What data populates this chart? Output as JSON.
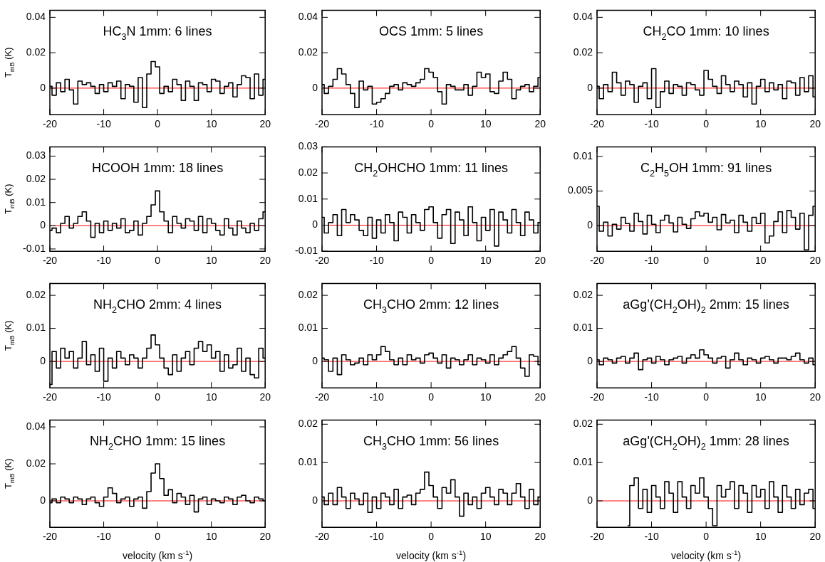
{
  "chart_data": [
    {
      "type": "step",
      "title": "HC$_{3}$N 1mm: 6 lines",
      "ylabel": "T$_{mB}$ (K)",
      "color": "#000000",
      "xlim": [
        -20,
        20
      ],
      "xticks": [
        -20,
        -10,
        0,
        10,
        20
      ],
      "ylim": [
        -0.015,
        0.044
      ],
      "yticks": [
        0,
        0.02,
        0.04
      ],
      "ref_lines": [
        {
          "axis": "y",
          "value": 0,
          "color": "#ff0000"
        }
      ],
      "x": [
        -20,
        -19.2,
        -18.4,
        -17.6,
        -16.8,
        -16,
        -15.2,
        -14.4,
        -13.6,
        -12.8,
        -12,
        -11.2,
        -10.4,
        -9.6,
        -8.8,
        -8,
        -7.2,
        -6.4,
        -5.6,
        -4.8,
        -4,
        -3.2,
        -2.4,
        -1.6,
        -0.8,
        0,
        0.8,
        1.6,
        2.4,
        3.2,
        4,
        4.8,
        5.6,
        6.4,
        7.2,
        8,
        8.8,
        9.6,
        10.4,
        11.2,
        12,
        12.8,
        13.6,
        14.4,
        15.2,
        16,
        16.8,
        17.6,
        18.4,
        19.2,
        20
      ],
      "values": [
        0.001,
        -0.004,
        0.003,
        -0.002,
        0.005,
        -0.001,
        -0.009,
        0.004,
        0.002,
        0.003,
        0.001,
        -0.003,
        0.002,
        -0.002,
        0.003,
        0.001,
        0.004,
        -0.006,
        0.002,
        0.001,
        -0.008,
        0.006,
        -0.011,
        0.008,
        0.015,
        0.012,
        -0.003,
        0.001,
        -0.002,
        0.005,
        0.002,
        -0.007,
        0.004,
        0.001,
        -0.007,
        0.003,
        0.002,
        -0.002,
        0.005,
        0.004,
        -0.003,
        0.001,
        0.003,
        -0.005,
        0.002,
        0.007,
        0.006,
        -0.006,
        0.008,
        -0.004,
        0.005
      ]
    },
    {
      "type": "step",
      "title": "OCS 1mm: 5 lines",
      "color": "#000000",
      "xlim": [
        -20,
        20
      ],
      "xticks": [
        -20,
        -10,
        0,
        10,
        20
      ],
      "ylim": [
        -0.015,
        0.044
      ],
      "yticks": [
        0,
        0.02,
        0.04
      ],
      "ref_lines": [
        {
          "axis": "y",
          "value": 0,
          "color": "#ff0000"
        }
      ],
      "x": [
        -20,
        -19.2,
        -18.4,
        -17.6,
        -16.8,
        -16,
        -15.2,
        -14.4,
        -13.6,
        -12.8,
        -12,
        -11.2,
        -10.4,
        -9.6,
        -8.8,
        -8,
        -7.2,
        -6.4,
        -5.6,
        -4.8,
        -4,
        -3.2,
        -2.4,
        -1.6,
        -0.8,
        0,
        0.8,
        1.6,
        2.4,
        3.2,
        4,
        4.8,
        5.6,
        6.4,
        7.2,
        8,
        8.8,
        9.6,
        10.4,
        11.2,
        12,
        12.8,
        13.6,
        14.4,
        15.2,
        16,
        16.8,
        17.6,
        18.4,
        19.2,
        20
      ],
      "values": [
        0.002,
        -0.003,
        0.001,
        0.005,
        0.011,
        0.008,
        0.002,
        -0.003,
        -0.011,
        0.004,
        -0.001,
        0.001,
        -0.009,
        -0.008,
        -0.006,
        -0.003,
        0.001,
        0.002,
        -0.001,
        0.003,
        0.002,
        0.001,
        0.003,
        0.005,
        0.011,
        0.009,
        0.006,
        -0.002,
        -0.009,
        0.002,
        0.001,
        -0.001,
        -0.001,
        0.002,
        -0.004,
        0.001,
        0.009,
        0.006,
        0.008,
        -0.002,
        -0.003,
        0.004,
        0.009,
        0.005,
        -0.006,
        -0.001,
        0.001,
        0.002,
        -0.002,
        0.001,
        0.006
      ]
    },
    {
      "type": "step",
      "title": "CH$_{2}$CO 1mm: 10 lines",
      "color": "#000000",
      "xlim": [
        -20,
        20
      ],
      "xticks": [
        -20,
        -10,
        0,
        10,
        20
      ],
      "ylim": [
        -0.015,
        0.044
      ],
      "yticks": [
        0,
        0.02,
        0.04
      ],
      "ref_lines": [
        {
          "axis": "y",
          "value": 0,
          "color": "#ff0000"
        }
      ],
      "x": [
        -20,
        -19.2,
        -18.4,
        -17.6,
        -16.8,
        -16,
        -15.2,
        -14.4,
        -13.6,
        -12.8,
        -12,
        -11.2,
        -10.4,
        -9.6,
        -8.8,
        -8,
        -7.2,
        -6.4,
        -5.6,
        -4.8,
        -4,
        -3.2,
        -2.4,
        -1.6,
        -0.8,
        0,
        0.8,
        1.6,
        2.4,
        3.2,
        4,
        4.8,
        5.6,
        6.4,
        7.2,
        8,
        8.8,
        9.6,
        10.4,
        11.2,
        12,
        12.8,
        13.6,
        14.4,
        15.2,
        16,
        16.8,
        17.6,
        18.4,
        19.2,
        20
      ],
      "values": [
        0.001,
        -0.006,
        0.002,
        -0.002,
        0.009,
        0.003,
        -0.004,
        0.004,
        0.002,
        -0.008,
        0.001,
        0.003,
        -0.006,
        0.011,
        -0.011,
        -0.002,
        0.004,
        -0.003,
        0.002,
        0.001,
        -0.004,
        0.003,
        0.002,
        -0.001,
        -0.004,
        0.01,
        0.005,
        0.001,
        -0.003,
        0.007,
        0.002,
        -0.002,
        0.004,
        0.002,
        -0.005,
        0.003,
        -0.009,
        0.001,
        0.005,
        -0.002,
        0.003,
        -0.001,
        0.002,
        -0.006,
        0.004,
        0.003,
        -0.004,
        0.006,
        -0.002,
        0.007,
        -0.005
      ]
    },
    {
      "type": "step",
      "title": "HCOOH 1mm: 18 lines",
      "ylabel": "T$_{mB}$ (K)",
      "color": "#000000",
      "xlim": [
        -20,
        20
      ],
      "xticks": [
        -20,
        -10,
        0,
        10,
        20
      ],
      "ylim": [
        -0.011,
        0.034
      ],
      "yticks": [
        -0.01,
        0,
        0.01,
        0.02,
        0.03
      ],
      "ref_lines": [
        {
          "axis": "y",
          "value": 0,
          "color": "#ff0000"
        }
      ],
      "x": [
        -20,
        -19.2,
        -18.4,
        -17.6,
        -16.8,
        -16,
        -15.2,
        -14.4,
        -13.6,
        -12.8,
        -12,
        -11.2,
        -10.4,
        -9.6,
        -8.8,
        -8,
        -7.2,
        -6.4,
        -5.6,
        -4.8,
        -4,
        -3.2,
        -2.4,
        -1.6,
        -0.8,
        0,
        0.8,
        1.6,
        2.4,
        3.2,
        4,
        4.8,
        5.6,
        6.4,
        7.2,
        8,
        8.8,
        9.6,
        10.4,
        11.2,
        12,
        12.8,
        13.6,
        14.4,
        15.2,
        16,
        16.8,
        17.6,
        18.4,
        19.2,
        20
      ],
      "values": [
        -0.002,
        -0.001,
        -0.003,
        0.001,
        0.004,
        -0.001,
        0.001,
        0.004,
        0.006,
        0.002,
        -0.005,
        0.001,
        -0.003,
        0.002,
        -0.002,
        0.001,
        -0.001,
        0.003,
        -0.003,
        -0.002,
        0.002,
        -0.004,
        0.001,
        0.004,
        0.009,
        0.015,
        0.006,
        0.002,
        -0.003,
        0.004,
        0.001,
        -0.001,
        0.003,
        0.002,
        -0.002,
        0.004,
        -0.003,
        0.003,
        0.001,
        -0.002,
        -0.004,
        0.003,
        -0.001,
        -0.004,
        0.002,
        -0.001,
        -0.003,
        0.001,
        -0.002,
        0.003,
        0.006
      ]
    },
    {
      "type": "step",
      "title": "CH$_{2}$OHCHO 1mm: 11 lines",
      "color": "#000000",
      "xlim": [
        -20,
        20
      ],
      "xticks": [
        -20,
        -10,
        0,
        10,
        20
      ],
      "ylim": [
        -0.01,
        0.03
      ],
      "yticks": [
        -0.01,
        0,
        0.01,
        0.02,
        0.03
      ],
      "ref_lines": [
        {
          "axis": "y",
          "value": 0,
          "color": "#ff0000"
        }
      ],
      "x": [
        -20,
        -19.2,
        -18.4,
        -17.6,
        -16.8,
        -16,
        -15.2,
        -14.4,
        -13.6,
        -12.8,
        -12,
        -11.2,
        -10.4,
        -9.6,
        -8.8,
        -8,
        -7.2,
        -6.4,
        -5.6,
        -4.8,
        -4,
        -3.2,
        -2.4,
        -1.6,
        -0.8,
        0,
        0.8,
        1.6,
        2.4,
        3.2,
        4,
        4.8,
        5.6,
        6.4,
        7.2,
        8,
        8.8,
        9.6,
        10.4,
        11.2,
        12,
        12.8,
        13.6,
        14.4,
        15.2,
        16,
        16.8,
        17.6,
        18.4,
        19.2,
        20
      ],
      "values": [
        0.003,
        -0.003,
        0.001,
        0.004,
        -0.004,
        0.006,
        0.001,
        0.004,
        0.002,
        -0.002,
        -0.004,
        0.003,
        -0.005,
        0.002,
        -0.003,
        0.004,
        0.001,
        -0.006,
        0.005,
        0.003,
        -0.003,
        0.004,
        0.001,
        -0.002,
        0.006,
        0.007,
        0.001,
        -0.005,
        0.004,
        0.006,
        -0.007,
        0.005,
        0.002,
        -0.004,
        0.007,
        0.001,
        -0.006,
        0.003,
        -0.002,
        0.006,
        -0.008,
        0.005,
        0.002,
        -0.003,
        0.006,
        0.001,
        -0.004,
        0.005,
        0.002,
        -0.003,
        0.001
      ]
    },
    {
      "type": "step",
      "title": "C$_{2}$H$_{5}$OH 1mm: 91 lines",
      "color": "#000000",
      "xlim": [
        -20,
        20
      ],
      "xticks": [
        -20,
        -10,
        0,
        10,
        20
      ],
      "ylim": [
        -0.0037,
        0.0114
      ],
      "yticks": [
        0,
        0.005,
        0.01
      ],
      "ref_lines": [
        {
          "axis": "y",
          "value": 0,
          "color": "#ff0000"
        }
      ],
      "x": [
        -20,
        -19.2,
        -18.4,
        -17.6,
        -16.8,
        -16,
        -15.2,
        -14.4,
        -13.6,
        -12.8,
        -12,
        -11.2,
        -10.4,
        -9.6,
        -8.8,
        -8,
        -7.2,
        -6.4,
        -5.6,
        -4.8,
        -4,
        -3.2,
        -2.4,
        -1.6,
        -0.8,
        0,
        0.8,
        1.6,
        2.4,
        3.2,
        4,
        4.8,
        5.6,
        6.4,
        7.2,
        8,
        8.8,
        9.6,
        10.4,
        11.2,
        12,
        12.8,
        13.6,
        14.4,
        15.2,
        16,
        16.8,
        17.6,
        18.4,
        19.2,
        20
      ],
      "values": [
        0.0028,
        -0.0008,
        0.0005,
        -0.0015,
        0.0002,
        -0.0005,
        0.0012,
        0.0003,
        -0.0008,
        0.0018,
        0.0006,
        -0.0012,
        0.0015,
        0.0002,
        -0.001,
        0.0008,
        0.0015,
        0.0004,
        -0.0009,
        0.0012,
        0.0002,
        -0.0004,
        0.001,
        0.002,
        0.0014,
        0.0018,
        0.0005,
        0.0012,
        -0.0006,
        0.0016,
        0.0004,
        0.0008,
        -0.001,
        0.0015,
        0.0005,
        -0.0008,
        0.0012,
        0.0003,
        0.0018,
        -0.0025,
        -0.0015,
        0.0006,
        0.002,
        -0.001,
        0.0022,
        0.0012,
        -0.0005,
        0.0018,
        -0.0035,
        0.0015,
        0.0028
      ]
    },
    {
      "type": "step",
      "title": "NH$_{2}$CHO 2mm: 4 lines",
      "ylabel": "T$_{mB}$ (K)",
      "color": "#000000",
      "xlim": [
        -20,
        20
      ],
      "xticks": [
        -20,
        -10,
        0,
        10,
        20
      ],
      "ylim": [
        -0.008,
        0.0236
      ],
      "yticks": [
        0,
        0.01,
        0.02
      ],
      "ref_lines": [
        {
          "axis": "y",
          "value": 0,
          "color": "#ff0000"
        }
      ],
      "x": [
        -20,
        -19.2,
        -18.4,
        -17.6,
        -16.8,
        -16,
        -15.2,
        -14.4,
        -13.6,
        -12.8,
        -12,
        -11.2,
        -10.4,
        -9.6,
        -8.8,
        -8,
        -7.2,
        -6.4,
        -5.6,
        -4.8,
        -4,
        -3.2,
        -2.4,
        -1.6,
        -0.8,
        0,
        0.8,
        1.6,
        2.4,
        3.2,
        4,
        4.8,
        5.6,
        6.4,
        7.2,
        8,
        8.8,
        9.6,
        10.4,
        11.2,
        12,
        12.8,
        13.6,
        14.4,
        15.2,
        16,
        16.8,
        17.6,
        18.4,
        19.2,
        20
      ],
      "values": [
        -0.007,
        0.003,
        -0.002,
        0.004,
        0.001,
        0.003,
        -0.002,
        0.001,
        0.006,
        -0.001,
        0.002,
        -0.003,
        0.004,
        -0.006,
        0.001,
        -0.002,
        0.003,
        0.001,
        -0.001,
        0.002,
        0.001,
        -0.002,
        0.001,
        0.004,
        0.008,
        0.005,
        0.001,
        -0.002,
        -0.004,
        0.002,
        -0.003,
        0.001,
        0.003,
        -0.001,
        0.004,
        0.006,
        0.003,
        0.005,
        0.001,
        0.003,
        -0.003,
        0.002,
        -0.002,
        -0.001,
        0.004,
        -0.003,
        0.001,
        -0.004,
        -0.005,
        0.004,
        0.001
      ]
    },
    {
      "type": "step",
      "title": "CH$_{3}$CHO 2mm: 12 lines",
      "color": "#000000",
      "xlim": [
        -20,
        20
      ],
      "xticks": [
        -20,
        -10,
        0,
        10,
        20
      ],
      "ylim": [
        -0.008,
        0.0236
      ],
      "yticks": [
        0,
        0.01,
        0.02
      ],
      "ref_lines": [
        {
          "axis": "y",
          "value": 0,
          "color": "#ff0000"
        }
      ],
      "x": [
        -20,
        -19.2,
        -18.4,
        -17.6,
        -16.8,
        -16,
        -15.2,
        -14.4,
        -13.6,
        -12.8,
        -12,
        -11.2,
        -10.4,
        -9.6,
        -8.8,
        -8,
        -7.2,
        -6.4,
        -5.6,
        -4.8,
        -4,
        -3.2,
        -2.4,
        -1.6,
        -0.8,
        0,
        0.8,
        1.6,
        2.4,
        3.2,
        4,
        4.8,
        5.6,
        6.4,
        7.2,
        8,
        8.8,
        9.6,
        10.4,
        11.2,
        12,
        12.8,
        13.6,
        14.4,
        15.2,
        16,
        16.8,
        17.6,
        18.4,
        19.2,
        20
      ],
      "values": [
        0.001,
        0.0005,
        -0.003,
        0.001,
        -0.004,
        0.002,
        0.0005,
        -0.001,
        -0.0005,
        0.001,
        -0.001,
        0.002,
        0.0005,
        0.002,
        0.0045,
        0.003,
        0.0005,
        -0.001,
        0.001,
        -0.001,
        0.002,
        0.0005,
        0.001,
        -0.0005,
        0.002,
        0.0025,
        0.001,
        -0.0005,
        0.002,
        -0.002,
        0.001,
        0.0005,
        -0.001,
        0.0005,
        0.002,
        -0.001,
        0.001,
        0.0005,
        -0.0005,
        0.002,
        -0.001,
        0.001,
        0.002,
        0.003,
        0.0045,
        0.001,
        -0.002,
        -0.0045,
        0.002,
        0.0015,
        -0.001
      ]
    },
    {
      "type": "step",
      "title": "aGg'(CH$_{2}$OH)$_{2}$ 2mm: 15 lines",
      "color": "#000000",
      "xlim": [
        -20,
        20
      ],
      "xticks": [
        -20,
        -10,
        0,
        10,
        20
      ],
      "ylim": [
        -0.008,
        0.0236
      ],
      "yticks": [
        0,
        0.01,
        0.02
      ],
      "ref_lines": [
        {
          "axis": "y",
          "value": 0,
          "color": "#ff0000"
        }
      ],
      "x": [
        -20,
        -19.2,
        -18.4,
        -17.6,
        -16.8,
        -16,
        -15.2,
        -14.4,
        -13.6,
        -12.8,
        -12,
        -11.2,
        -10.4,
        -9.6,
        -8.8,
        -8,
        -7.2,
        -6.4,
        -5.6,
        -4.8,
        -4,
        -3.2,
        -2.4,
        -1.6,
        -0.8,
        0,
        0.8,
        1.6,
        2.4,
        3.2,
        4,
        4.8,
        5.6,
        6.4,
        7.2,
        8,
        8.8,
        9.6,
        10.4,
        11.2,
        12,
        12.8,
        13.6,
        14.4,
        15.2,
        16,
        16.8,
        17.6,
        18.4,
        19.2,
        20
      ],
      "values": [
        0.0005,
        -0.001,
        0.001,
        0.0005,
        -0.0005,
        0.001,
        0.0015,
        -0.0005,
        0.001,
        0.0025,
        -0.0025,
        0.0005,
        0.001,
        -0.0005,
        0.0015,
        0.0005,
        -0.001,
        0.0005,
        0.001,
        0.0015,
        -0.0005,
        0.001,
        0.002,
        0.001,
        0.0035,
        0.002,
        0.001,
        -0.0005,
        0.001,
        0.0015,
        -0.002,
        0.0005,
        0.0025,
        0.0005,
        -0.001,
        0.001,
        0.0005,
        -0.0005,
        0.001,
        0.0015,
        0.0005,
        -0.0005,
        0.001,
        0.001,
        0.0005,
        0.0015,
        0.0025,
        0.0005,
        -0.0005,
        0.001,
        -0.001
      ]
    },
    {
      "type": "step",
      "title": "NH$_{2}$CHO 1mm: 15 lines",
      "ylabel": "T$_{mB}$ (K)",
      "xlabel": "velocity (km s$^{-1}$)",
      "color": "#000000",
      "xlim": [
        -20,
        20
      ],
      "xticks": [
        -20,
        -10,
        0,
        10,
        20
      ],
      "ylim": [
        -0.0143,
        0.0437
      ],
      "yticks": [
        0,
        0.02,
        0.04
      ],
      "ref_lines": [
        {
          "axis": "y",
          "value": 0,
          "color": "#ff0000"
        }
      ],
      "x": [
        -20,
        -19.2,
        -18.4,
        -17.6,
        -16.8,
        -16,
        -15.2,
        -14.4,
        -13.6,
        -12.8,
        -12,
        -11.2,
        -10.4,
        -9.6,
        -8.8,
        -8,
        -7.2,
        -6.4,
        -5.6,
        -4.8,
        -4,
        -3.2,
        -2.4,
        -1.6,
        -0.8,
        0,
        0.8,
        1.6,
        2.4,
        3.2,
        4,
        4.8,
        5.6,
        6.4,
        7.2,
        8,
        8.8,
        9.6,
        10.4,
        11.2,
        12,
        12.8,
        13.6,
        14.4,
        15.2,
        16,
        16.8,
        17.6,
        18.4,
        19.2,
        20
      ],
      "values": [
        -0.001,
        0.001,
        -0.001,
        0.002,
        0.001,
        -0.001,
        0.002,
        0.001,
        -0.002,
        0.001,
        0.002,
        -0.001,
        -0.003,
        0.002,
        0.007,
        0.004,
        -0.001,
        0.001,
        0.002,
        -0.003,
        0.001,
        0.002,
        -0.004,
        0.005,
        0.015,
        0.02,
        0.012,
        0.003,
        0.006,
        -0.001,
        0.004,
        0.002,
        -0.002,
        0.003,
        -0.006,
        0.001,
        0.002,
        -0.002,
        0.001,
        0,
        -0.001,
        0.002,
        0.001,
        -0.002,
        0.002,
        0.003,
        0,
        -0.001,
        0.002,
        0.001,
        0
      ]
    },
    {
      "type": "step",
      "title": "CH$_{3}$CHO 1mm: 56 lines",
      "xlabel": "velocity (km s$^{-1}$)",
      "color": "#000000",
      "xlim": [
        -20,
        20
      ],
      "xticks": [
        -20,
        -10,
        0,
        10,
        20
      ],
      "ylim": [
        -0.0069,
        0.0211
      ],
      "yticks": [
        0,
        0.01,
        0.02
      ],
      "ref_lines": [
        {
          "axis": "y",
          "value": 0,
          "color": "#ff0000"
        }
      ],
      "x": [
        -20,
        -19.2,
        -18.4,
        -17.6,
        -16.8,
        -16,
        -15.2,
        -14.4,
        -13.6,
        -12.8,
        -12,
        -11.2,
        -10.4,
        -9.6,
        -8.8,
        -8,
        -7.2,
        -6.4,
        -5.6,
        -4.8,
        -4,
        -3.2,
        -2.4,
        -1.6,
        -0.8,
        0,
        0.8,
        1.6,
        2.4,
        3.2,
        4,
        4.8,
        5.6,
        6.4,
        7.2,
        8,
        8.8,
        9.6,
        10.4,
        11.2,
        12,
        12.8,
        13.6,
        14.4,
        15.2,
        16,
        16.8,
        17.6,
        18.4,
        19.2,
        20
      ],
      "values": [
        0.001,
        -0.001,
        0.002,
        -0.001,
        0.0035,
        0.001,
        -0.002,
        0.002,
        0.0005,
        -0.001,
        0.002,
        -0.003,
        0.001,
        -0.002,
        0.002,
        0.001,
        -0.001,
        0.003,
        -0.002,
        0.001,
        0.0015,
        -0.001,
        0.002,
        0.003,
        0.0075,
        0.004,
        0.001,
        -0.002,
        0.0035,
        0.002,
        0.0055,
        0.001,
        -0.004,
        0.002,
        -0.001,
        0.001,
        -0.002,
        0.002,
        0.0035,
        0.001,
        -0.001,
        0.003,
        0.002,
        -0.001,
        0.002,
        0.0045,
        0.001,
        -0.002,
        0.003,
        -0.001,
        0.001
      ]
    },
    {
      "type": "step",
      "title": "aGg'(CH$_{2}$OH)$_{2}$ 1mm: 28 lines",
      "xlabel": "velocity (km s$^{-1}$)",
      "color": "#000000",
      "xlim": [
        -20,
        20
      ],
      "xticks": [
        -20,
        -10,
        0,
        10,
        20
      ],
      "ylim": [
        -0.0069,
        0.0211
      ],
      "yticks": [
        0,
        0.01,
        0.02
      ],
      "ref_lines": [
        {
          "axis": "y",
          "value": 0,
          "color": "#ff0000"
        }
      ],
      "x": [
        -14.4,
        -13.6,
        -12.8,
        -12,
        -11.2,
        -10.4,
        -9.6,
        -8.8,
        -8,
        -7.2,
        -6.4,
        -5.6,
        -4.8,
        -4,
        -3.2,
        -2.4,
        -1.6,
        -0.8,
        0,
        0.8,
        1.6,
        2.4,
        3.2,
        4,
        4.8,
        5.6,
        6.4,
        7.2,
        8,
        8.8,
        9.6,
        10.4,
        11.2,
        12,
        12.8,
        13.6,
        14.4,
        15.2,
        16,
        16.8,
        17.6,
        18.4,
        19.2,
        20
      ],
      "values": [
        -0.0065,
        0.004,
        0.006,
        -0.002,
        0.003,
        -0.003,
        0.004,
        0.001,
        -0.002,
        0.005,
        0.002,
        -0.003,
        0.005,
        0.001,
        -0.002,
        0.004,
        0.002,
        0.006,
        0.001,
        -0.002,
        -0.0065,
        0.004,
        0.001,
        0.003,
        0.005,
        -0.002,
        0.004,
        0.002,
        -0.003,
        0.004,
        0.001,
        0.003,
        -0.002,
        0.005,
        0.001,
        -0.003,
        0.004,
        0.001,
        -0.002,
        0.003,
        -0.001,
        0.002,
        0.003,
        -0.002
      ]
    }
  ]
}
